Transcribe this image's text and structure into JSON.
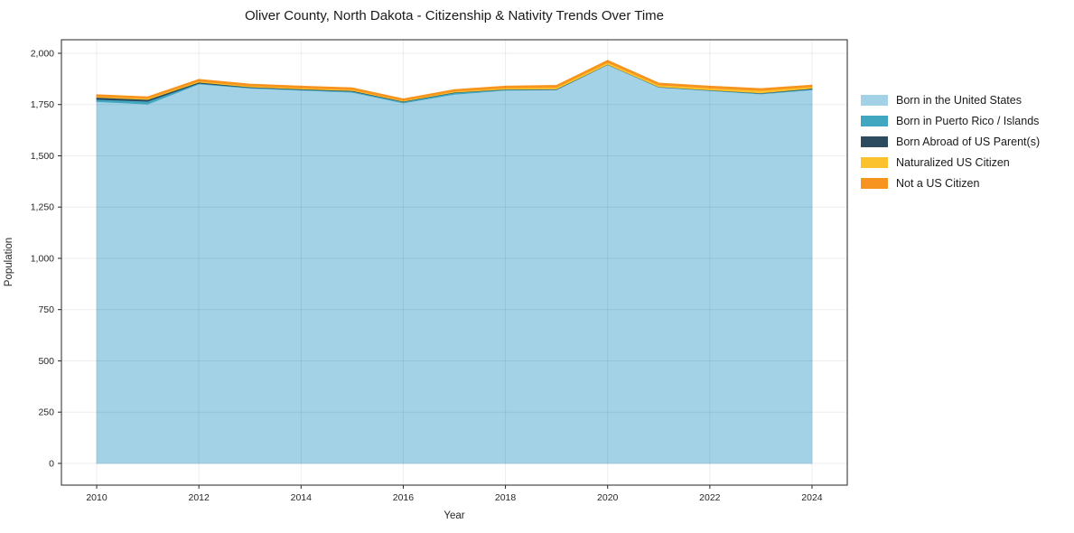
{
  "chart_data": {
    "type": "area",
    "stacked": true,
    "title": "Oliver County, North Dakota - Citizenship & Nativity Trends Over Time",
    "xlabel": "Year",
    "ylabel": "Population",
    "x": [
      2010,
      2011,
      2012,
      2013,
      2014,
      2015,
      2016,
      2017,
      2018,
      2019,
      2020,
      2021,
      2022,
      2023,
      2024
    ],
    "series": [
      {
        "name": "Born in the United States",
        "color": "#a3d2e6",
        "values": [
          1765,
          1752,
          1850,
          1830,
          1820,
          1810,
          1758,
          1800,
          1820,
          1822,
          1944,
          1834,
          1818,
          1802,
          1822
        ]
      },
      {
        "name": "Born in Puerto Rico / Islands",
        "color": "#41a6c0",
        "values": [
          10,
          14,
          4,
          3,
          3,
          5,
          6,
          8,
          3,
          2,
          1,
          2,
          2,
          3,
          4
        ]
      },
      {
        "name": "Born Abroad of US Parent(s)",
        "color": "#2c4b5e",
        "values": [
          10,
          9,
          5,
          3,
          3,
          3,
          2,
          2,
          2,
          2,
          1,
          1,
          1,
          2,
          3
        ]
      },
      {
        "name": "Naturalized US Citizen",
        "color": "#fcc22d",
        "values": [
          4,
          5,
          5,
          5,
          5,
          5,
          4,
          5,
          6,
          9,
          10,
          9,
          10,
          12,
          8
        ]
      },
      {
        "name": "Not a US Citizen",
        "color": "#f7941f",
        "values": [
          9,
          8,
          9,
          9,
          9,
          9,
          8,
          8,
          9,
          9,
          10,
          9,
          9,
          9,
          8
        ]
      }
    ],
    "xlim": [
      2009.31,
      2024.69
    ],
    "ylim": [
      -106,
      2066
    ],
    "xticks": {
      "values": [
        2010,
        2012,
        2014,
        2016,
        2018,
        2020,
        2022,
        2024
      ],
      "labels": [
        "2010",
        "2012",
        "2014",
        "2016",
        "2018",
        "2020",
        "2022",
        "2024"
      ]
    },
    "yticks": {
      "values": [
        0,
        250,
        500,
        750,
        1000,
        1250,
        1500,
        1750,
        2000
      ],
      "labels": [
        "0",
        "250",
        "500",
        "750",
        "1,000",
        "1,250",
        "1,500",
        "1,750",
        "2,000"
      ]
    },
    "grid": true,
    "legend_position": "right"
  }
}
